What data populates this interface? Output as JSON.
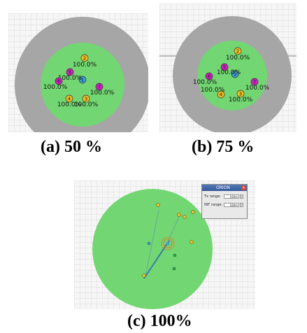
{
  "panels": [
    {
      "caption": "(a) 50 %",
      "nodes": [
        {
          "num": "1",
          "label": "",
          "color": "#3aa0d8"
        },
        {
          "num": "2",
          "label": "100.0%",
          "color": "#f0c020"
        },
        {
          "num": "3",
          "label": "100.0%",
          "color": "#f0c020"
        },
        {
          "num": "4",
          "label": "100.0%",
          "color": "#f0c020"
        },
        {
          "num": "5",
          "label": "100.0%",
          "color": "#d020c0"
        },
        {
          "num": "6",
          "label": "100.0%",
          "color": "#d020c0"
        },
        {
          "num": "7",
          "label": "100.0%",
          "color": "#d020c0"
        }
      ]
    },
    {
      "caption": "(b) 75 %",
      "nodes": [
        {
          "num": "1",
          "label": "",
          "color": "#3aa0d8"
        },
        {
          "num": "2",
          "label": "100.0%",
          "color": "#f0c020"
        },
        {
          "num": "3",
          "label": "100.0%",
          "color": "#f0c020"
        },
        {
          "num": "4",
          "label": "100.0%",
          "color": "#f0c020"
        },
        {
          "num": "5",
          "label": "100.0%",
          "color": "#d020c0"
        },
        {
          "num": "6",
          "label": "100.0%",
          "color": "#d020c0"
        },
        {
          "num": "7",
          "label": "100.0%",
          "color": "#d020c0"
        }
      ]
    },
    {
      "caption": "(c) 100%",
      "dialog": {
        "title": "ORION",
        "rows": [
          {
            "label": "Tx range:",
            "value": "100m"
          },
          {
            "label": "INT range:",
            "value": "100m"
          }
        ]
      }
    }
  ],
  "colors": {
    "interference_zone": "#a6a6a6",
    "tx_range": "#72d672",
    "grid": "#d4d4d4"
  }
}
